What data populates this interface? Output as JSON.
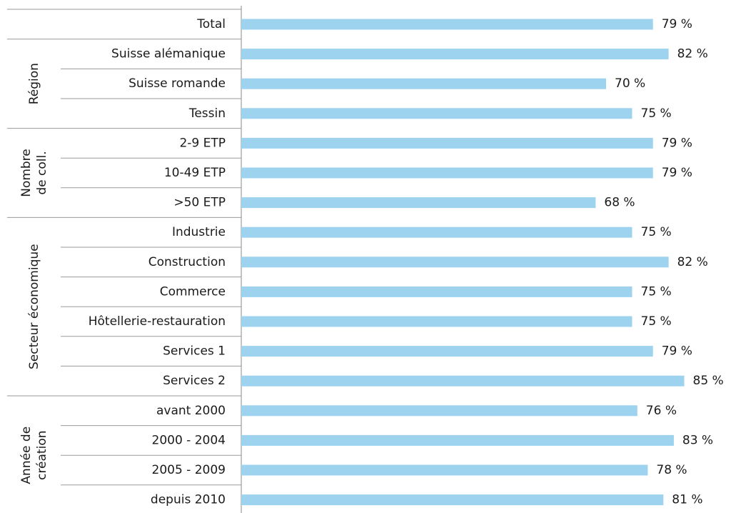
{
  "chart_data": {
    "type": "bar",
    "color": "#9dd3ef",
    "groups": [
      {
        "categories": [
          "Total"
        ],
        "values": [
          79
        ],
        "value_labels": [
          "79 %"
        ]
      },
      {
        "label": [
          "Région"
        ],
        "categories": [
          "Suisse alémanique",
          "Suisse romande",
          "Tessin"
        ],
        "values": [
          82,
          70,
          75
        ],
        "value_labels": [
          "82 %",
          "70 %",
          "75 %"
        ]
      },
      {
        "label": [
          "Nombre",
          "de coll."
        ],
        "categories": [
          "2-9 ETP",
          "10-49 ETP",
          ">50 ETP"
        ],
        "values": [
          79,
          79,
          68
        ],
        "value_labels": [
          "79 %",
          "79 %",
          "68 %"
        ]
      },
      {
        "label": [
          "Secteur économique"
        ],
        "categories": [
          "Industrie",
          "Construction",
          "Commerce",
          "Hôtellerie-restauration",
          "Services 1",
          "Services 2"
        ],
        "values": [
          75,
          82,
          75,
          75,
          79,
          85
        ],
        "value_labels": [
          "75 %",
          "82 %",
          "75 %",
          "75 %",
          "79 %",
          "85 %"
        ]
      },
      {
        "label": [
          "Année de",
          "création"
        ],
        "categories": [
          "avant 2000",
          "2000 - 2004",
          "2005 - 2009",
          "depuis 2010"
        ],
        "values": [
          76,
          83,
          78,
          81
        ],
        "value_labels": [
          "76 %",
          "83 %",
          "78 %",
          "81 %"
        ]
      }
    ]
  }
}
